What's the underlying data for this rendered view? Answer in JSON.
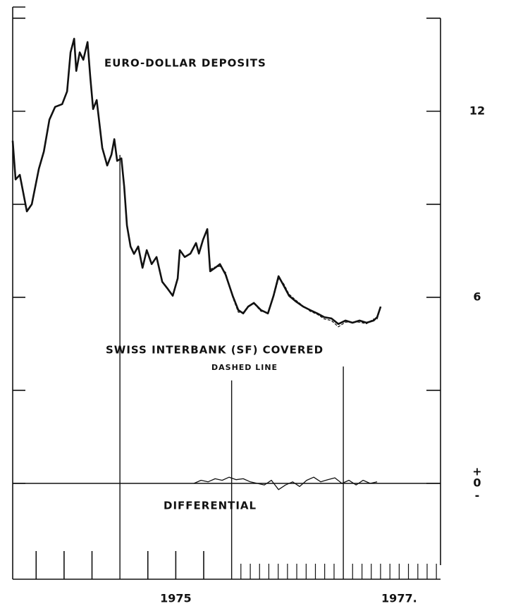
{
  "chart_data": {
    "type": "line",
    "annotations": [
      "EURO-DOLLAR DEPOSITS",
      "SWISS INTERBANK (SF) COVERED",
      "DASHED LINE",
      "DIFFERENTIAL",
      "+",
      "-"
    ],
    "series": [
      {
        "name": "EURO-DOLLAR DEPOSITS",
        "color": "#111111",
        "style": "solid",
        "width": 2.6,
        "x": [
          1974.04,
          1974.066,
          1974.104,
          1974.167,
          1974.211,
          1974.274,
          1974.319,
          1974.369,
          1974.42,
          1974.483,
          1974.527,
          1974.558,
          1974.59,
          1974.609,
          1974.64,
          1974.672,
          1974.71,
          1974.735,
          1974.76,
          1974.792,
          1974.842,
          1974.886,
          1974.924,
          1974.95,
          1974.975,
          1975.013,
          1975.038,
          1975.063,
          1975.095,
          1975.126,
          1975.164,
          1975.202,
          1975.24,
          1975.284,
          1975.328,
          1975.379,
          1975.429,
          1975.473,
          1975.517,
          1975.536,
          1975.58,
          1975.631,
          1975.681,
          1975.707,
          1975.744,
          1975.782,
          1975.808,
          1975.852,
          1975.896,
          1975.946,
          1976.009,
          1976.06,
          1976.104,
          1976.148,
          1976.199,
          1976.262,
          1976.325,
          1976.375,
          1976.42,
          1976.464,
          1976.514,
          1976.577,
          1976.64,
          1976.703,
          1976.767,
          1976.83,
          1976.893,
          1976.956,
          1977.019,
          1977.082,
          1977.145,
          1977.208,
          1977.271,
          1977.303,
          1977.334
        ],
        "values": [
          11.05,
          9.8,
          9.95,
          8.77,
          9.0,
          10.14,
          10.7,
          11.73,
          12.14,
          12.23,
          12.64,
          13.9,
          14.34,
          13.3,
          13.9,
          13.66,
          14.23,
          13.1,
          12.07,
          12.36,
          10.82,
          10.25,
          10.6,
          11.1,
          10.4,
          10.48,
          9.57,
          8.32,
          7.64,
          7.4,
          7.64,
          6.95,
          7.52,
          7.07,
          7.3,
          6.5,
          6.27,
          6.05,
          6.61,
          7.52,
          7.3,
          7.41,
          7.75,
          7.41,
          7.86,
          8.2,
          6.84,
          6.95,
          7.07,
          6.73,
          6.05,
          5.59,
          5.48,
          5.7,
          5.82,
          5.59,
          5.48,
          6.05,
          6.68,
          6.39,
          6.05,
          5.86,
          5.7,
          5.59,
          5.48,
          5.36,
          5.32,
          5.14,
          5.25,
          5.18,
          5.25,
          5.18,
          5.25,
          5.36,
          5.7
        ]
      },
      {
        "name": "SWISS INTERBANK (SF) COVERED",
        "color": "#111111",
        "style": "dashed",
        "width": 1.2,
        "x": [
          1975.808,
          1975.852,
          1975.896,
          1975.946,
          1976.009,
          1976.06,
          1976.104,
          1976.148,
          1976.199,
          1976.262,
          1976.325,
          1976.375,
          1976.42,
          1976.464,
          1976.514,
          1976.577,
          1976.64,
          1976.703,
          1976.767,
          1976.83,
          1976.893,
          1976.956,
          1977.019,
          1977.082,
          1977.145,
          1977.208,
          1977.271,
          1977.303,
          1977.334
        ],
        "values": [
          6.9,
          6.98,
          7.0,
          6.8,
          6.0,
          5.52,
          5.52,
          5.72,
          5.8,
          5.55,
          5.5,
          6.0,
          6.6,
          6.45,
          6.1,
          5.9,
          5.72,
          5.55,
          5.45,
          5.3,
          5.25,
          5.05,
          5.2,
          5.2,
          5.2,
          5.15,
          5.3,
          5.3,
          5.68
        ]
      },
      {
        "name": "DIFFERENTIAL",
        "color": "#111111",
        "style": "solid",
        "width": 1.3,
        "x": [
          1975.662,
          1975.726,
          1975.789,
          1975.852,
          1975.915,
          1975.978,
          1976.041,
          1976.104,
          1976.167,
          1976.23,
          1976.293,
          1976.356,
          1976.42,
          1976.483,
          1976.546,
          1976.609,
          1976.672,
          1976.735,
          1976.798,
          1976.861,
          1976.924,
          1976.987,
          1977.05,
          1977.114,
          1977.177,
          1977.24,
          1977.303
        ],
        "values": [
          0.0,
          0.1,
          0.05,
          0.15,
          0.1,
          0.2,
          0.12,
          0.15,
          0.05,
          0.0,
          -0.05,
          0.1,
          -0.2,
          -0.05,
          0.05,
          -0.1,
          0.1,
          0.2,
          0.05,
          0.12,
          0.18,
          0.0,
          0.1,
          -0.05,
          0.1,
          0.0,
          0.05
        ]
      }
    ],
    "xlim": [
      1974.04,
      1977.87
    ],
    "xticks": [
      {
        "value": 1975.5,
        "label": "1975"
      },
      {
        "value": 1977.5,
        "label": "1977."
      }
    ],
    "quarter_ticks": [
      1974.25,
      1974.5,
      1974.75,
      1975.25,
      1975.5,
      1975.75
    ],
    "month_ticks": [
      1976.083,
      1976.167,
      1976.25,
      1976.333,
      1976.417,
      1976.5,
      1976.583,
      1976.667,
      1976.75,
      1976.833,
      1976.917,
      1977.083,
      1977.167,
      1977.25,
      1977.333,
      1977.417,
      1977.5,
      1977.583,
      1977.667,
      1977.75,
      1977.833
    ],
    "year_lines": [
      {
        "x": 1975,
        "top": 10.59
      },
      {
        "x": 1976,
        "top": 3.32
      },
      {
        "x": 1977,
        "top": 3.77
      }
    ],
    "ylim": [
      -3.09,
      15.36
    ],
    "yticks": [
      0,
      6,
      12
    ],
    "minor_yticks": [
      3,
      9,
      15
    ],
    "baseline": 0
  }
}
